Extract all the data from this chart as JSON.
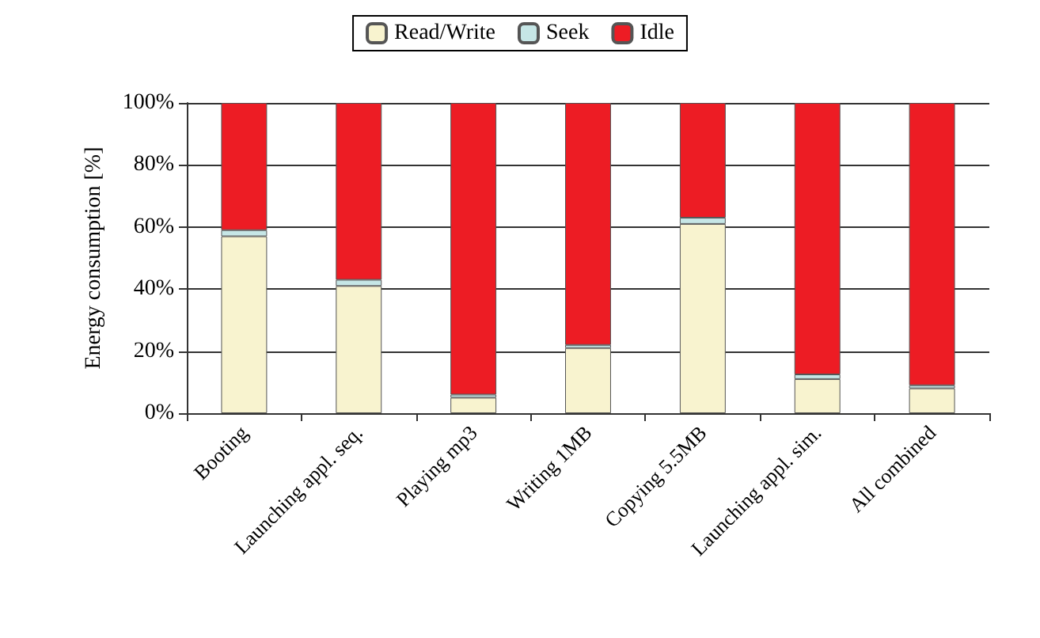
{
  "chart_data": {
    "type": "bar",
    "stacked": true,
    "ylabel": "Energy consumption [%]",
    "categories": [
      "Booting",
      "Launching appl. seq.",
      "Playing mp3",
      "Writing 1MB",
      "Copying 5.5MB",
      "Launching appl. sim.",
      "All combined"
    ],
    "series": [
      {
        "name": "Read/Write",
        "color": "#f8f3cf",
        "values": [
          57,
          41,
          5,
          21,
          61,
          11,
          8
        ]
      },
      {
        "name": "Seek",
        "color": "#c6e6e6",
        "values": [
          2,
          2,
          1,
          1,
          2,
          1.5,
          1
        ]
      },
      {
        "name": "Idle",
        "color": "#ed1c24",
        "values": [
          41,
          57,
          94,
          78,
          37,
          87.5,
          91
        ]
      }
    ],
    "ylim": [
      0,
      100
    ],
    "yticks": [
      {
        "value": 0,
        "label": "0%"
      },
      {
        "value": 20,
        "label": "20%"
      },
      {
        "value": 40,
        "label": "40%"
      },
      {
        "value": 60,
        "label": "60%"
      },
      {
        "value": 80,
        "label": "80%"
      },
      {
        "value": 100,
        "label": "100%"
      }
    ],
    "grid": "y",
    "legend": "top"
  }
}
